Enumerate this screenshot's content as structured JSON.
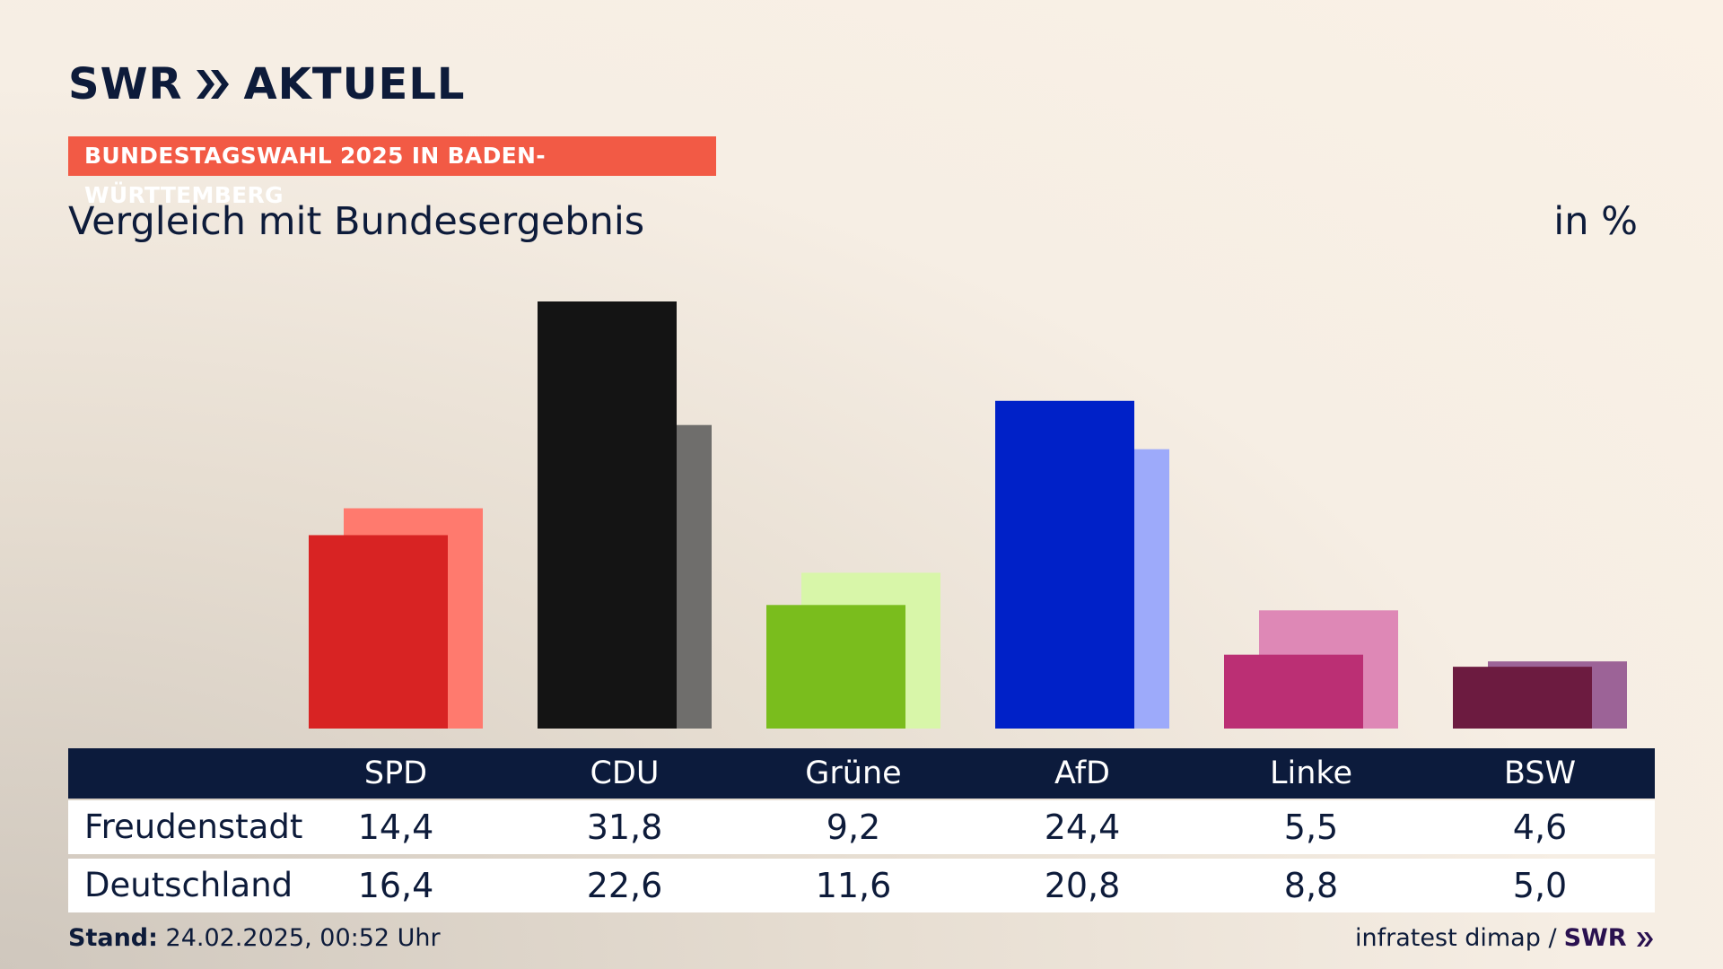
{
  "brand": {
    "logo_text_left": "SWR",
    "logo_text_right": "AKTUELL",
    "footer_logo": "SWR"
  },
  "header": {
    "badge": "BUNDESTAGSWAHL 2025 IN BADEN-WÜRTTEMBERG",
    "subtitle": "Vergleich mit Bundesergebnis",
    "unit": "in %"
  },
  "chart_data": {
    "type": "bar",
    "categories": [
      "SPD",
      "CDU",
      "Grüne",
      "AfD",
      "Linke",
      "BSW"
    ],
    "series": [
      {
        "name": "Freudenstadt",
        "values": [
          14.4,
          31.8,
          9.2,
          24.4,
          5.5,
          4.6
        ]
      },
      {
        "name": "Deutschland",
        "values": [
          16.4,
          22.6,
          11.6,
          20.8,
          8.8,
          5.0
        ]
      }
    ],
    "ylim": [
      0,
      31.8
    ],
    "grid": false,
    "colors": {
      "primary": [
        "#d82323",
        "#141414",
        "#7abd1d",
        "#0021c8",
        "#bb2f74",
        "#6c1b40"
      ],
      "secondary": [
        "#ff7a6e",
        "#6f6e6c",
        "#d8f6a9",
        "#9daafa",
        "#de88b6",
        "#9c6397"
      ]
    }
  },
  "table": {
    "headers": [
      "SPD",
      "CDU",
      "Grüne",
      "AfD",
      "Linke",
      "BSW"
    ],
    "rows": [
      {
        "label": "Freudenstadt",
        "values": [
          "14,4",
          "31,8",
          "9,2",
          "24,4",
          "5,5",
          "4,6"
        ]
      },
      {
        "label": "Deutschland",
        "values": [
          "16,4",
          "22,6",
          "11,6",
          "20,8",
          "8,8",
          "5,0"
        ]
      }
    ]
  },
  "footer": {
    "stand_label": "Stand:",
    "stand_value": "24.02.2025, 00:52 Uhr",
    "source": "infratest dimap /"
  }
}
